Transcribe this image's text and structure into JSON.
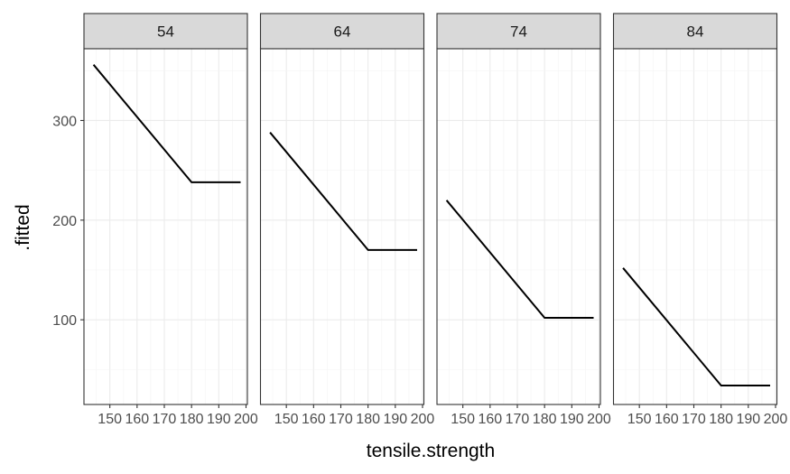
{
  "chart_data": {
    "type": "line",
    "facet_variable": "",
    "facets": [
      {
        "label": "54",
        "x": [
          144,
          180,
          198
        ],
        "y": [
          356,
          238,
          238
        ]
      },
      {
        "label": "64",
        "x": [
          144,
          180,
          198
        ],
        "y": [
          288,
          170,
          170
        ]
      },
      {
        "label": "74",
        "x": [
          144,
          180,
          198
        ],
        "y": [
          220,
          102,
          102
        ]
      },
      {
        "label": "84",
        "x": [
          144,
          180,
          198
        ],
        "y": [
          152,
          34,
          34
        ]
      }
    ],
    "xlabel": "tensile.strength",
    "ylabel": ".fitted",
    "xlim": [
      140.5,
      200.5
    ],
    "ylim": [
      15,
      372
    ],
    "xticks": [
      150,
      160,
      170,
      180,
      190,
      200
    ],
    "xtick_labels": [
      "150",
      "160",
      "170",
      "180",
      "190",
      "200"
    ],
    "yticks": [
      100,
      200,
      300
    ],
    "ytick_labels": [
      "100",
      "200",
      "300"
    ],
    "grid": true,
    "theme": "bw",
    "colors": {
      "line": "#000000",
      "strip_fill": "#d9d9d9",
      "panel_border": "#333333",
      "grid": "#ebebeb"
    }
  }
}
